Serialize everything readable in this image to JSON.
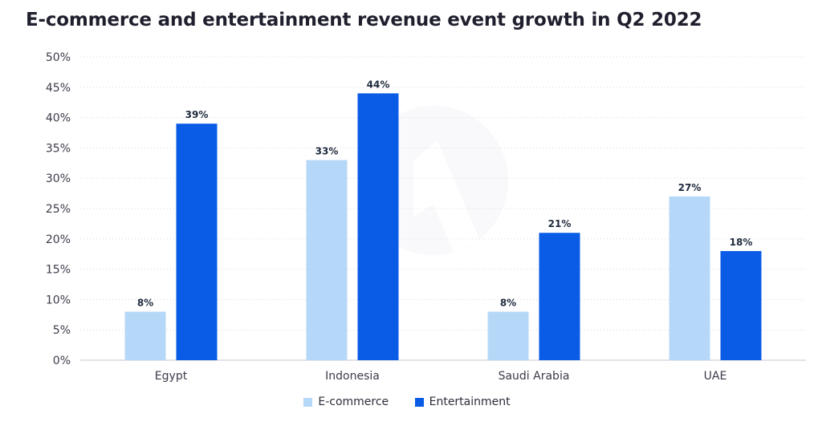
{
  "chart_data": {
    "type": "bar",
    "title": "E-commerce and entertainment revenue event growth in Q2 2022",
    "categories": [
      "Egypt",
      "Indonesia",
      "Saudi Arabia",
      "UAE"
    ],
    "series": [
      {
        "name": "E-commerce",
        "values": [
          8,
          33,
          8,
          27
        ],
        "labels": [
          "8%",
          "33%",
          "8%",
          "27%"
        ],
        "color": "#b6d8f8"
      },
      {
        "name": "Entertainment",
        "values": [
          39,
          44,
          21,
          18
        ],
        "labels": [
          "39%",
          "44%",
          "21%",
          "18%"
        ],
        "color": "#0a5ce6"
      }
    ],
    "yticks": [
      "0%",
      "5%",
      "10%",
      "15%",
      "20%",
      "25%",
      "30%",
      "35%",
      "40%",
      "45%",
      "50%"
    ],
    "ylim": [
      0,
      50
    ],
    "grid": true,
    "legend_position": "bottom-center",
    "xlabel": "",
    "ylabel": ""
  }
}
